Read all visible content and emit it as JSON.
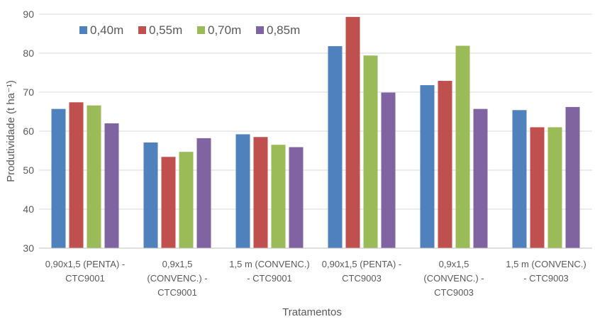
{
  "chart_data": {
    "type": "bar",
    "title": "",
    "xlabel": "Tratamentos",
    "ylabel": "Produtividade (t ha⁻¹)",
    "ylim": [
      30,
      90
    ],
    "yticks": [
      30,
      40,
      50,
      60,
      70,
      80,
      90
    ],
    "grid": true,
    "legend_position": "top-left",
    "categories": [
      [
        "0,90x1,5 (PENTA) -",
        "CTC9001"
      ],
      [
        "0,9x1,5",
        "(CONVENC.) -",
        "CTC9001"
      ],
      [
        "1,5 m (CONVENC.)",
        "- CTC9001"
      ],
      [
        "0,90x1,5 (PENTA) -",
        "CTC9003"
      ],
      [
        "0,9x1,5",
        "(CONVENC.) -",
        "CTC9003"
      ],
      [
        "1,5 m (CONVENC.)",
        "- CTC9003"
      ]
    ],
    "series": [
      {
        "name": "0,40m",
        "color": "#4f81bd",
        "values": [
          65.7,
          57.1,
          59.2,
          81.8,
          71.8,
          65.4
        ]
      },
      {
        "name": "0,55m",
        "color": "#c0504d",
        "values": [
          67.4,
          53.4,
          58.5,
          89.3,
          72.9,
          61.0
        ]
      },
      {
        "name": "0,70m",
        "color": "#9bbb59",
        "values": [
          66.6,
          54.7,
          56.5,
          79.4,
          81.9,
          61.0
        ]
      },
      {
        "name": "0,85m",
        "color": "#8064a2",
        "values": [
          62.0,
          58.2,
          55.9,
          69.9,
          65.7,
          66.2
        ]
      }
    ]
  }
}
